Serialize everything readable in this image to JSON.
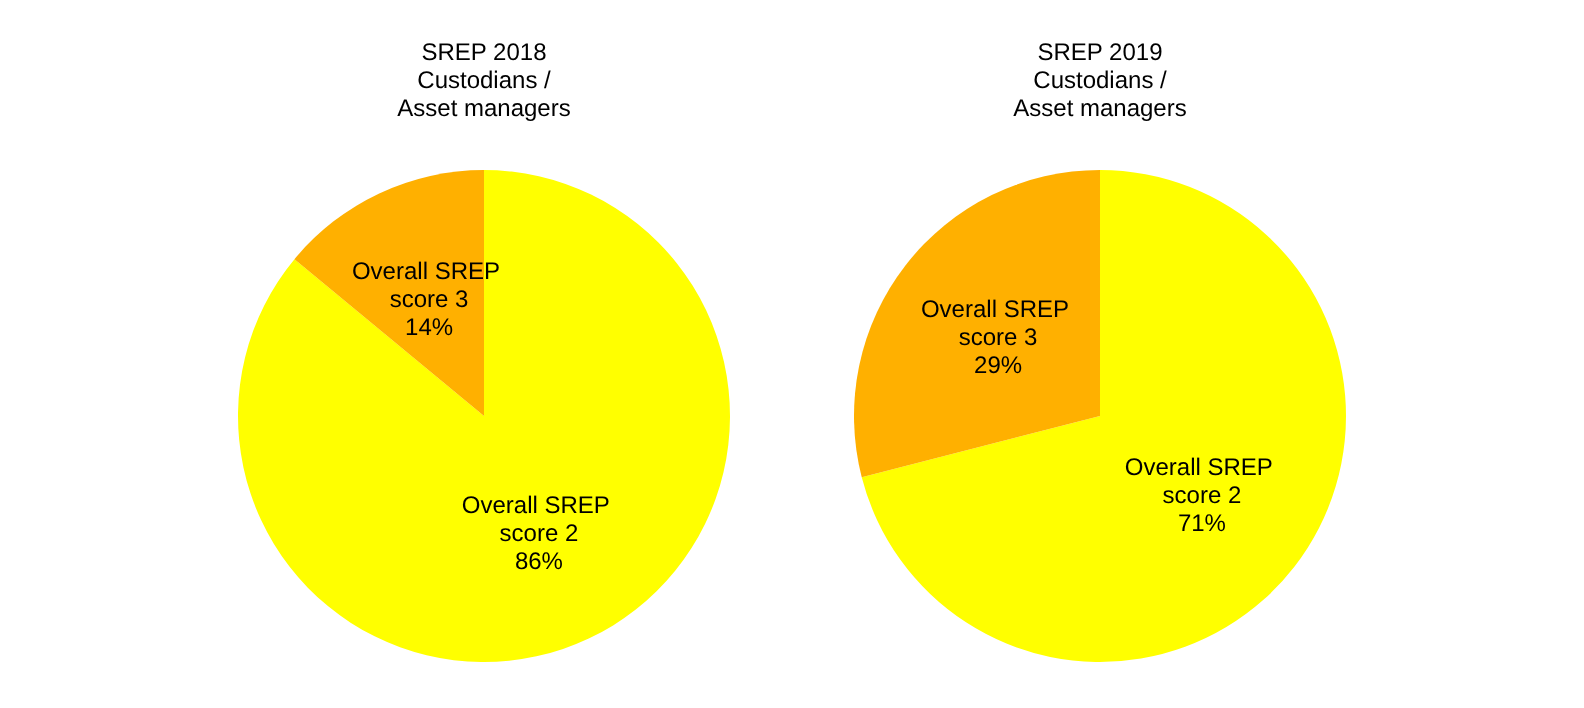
{
  "chart_data": [
    {
      "type": "pie",
      "title": "SREP 2018\nCustodians /\nAsset managers",
      "categories": [
        "Overall SREP score 2",
        "Overall SREP score 3"
      ],
      "values": [
        86,
        14
      ],
      "colors": [
        "#ffff00",
        "#ffb000"
      ],
      "value_labels": [
        "86%",
        "14%"
      ],
      "legend": false
    },
    {
      "type": "pie",
      "title": "SREP 2019\nCustodians /\nAsset managers",
      "categories": [
        "Overall SREP score 2",
        "Overall SREP score 3"
      ],
      "values": [
        71,
        29
      ],
      "colors": [
        "#ffff00",
        "#ffb000"
      ],
      "value_labels": [
        "71%",
        "29%"
      ],
      "legend": false
    }
  ]
}
